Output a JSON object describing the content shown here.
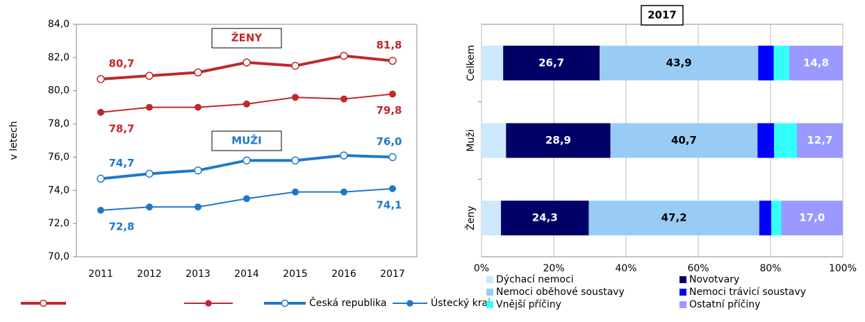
{
  "chart_data": [
    {
      "type": "line",
      "y_label": "v letech",
      "categories": [
        "2011",
        "2012",
        "2013",
        "2014",
        "2015",
        "2016",
        "2017"
      ],
      "ylim": [
        70,
        84
      ],
      "yticks": [
        {
          "value": 70,
          "label": "70,0"
        },
        {
          "value": 72,
          "label": "72,0"
        },
        {
          "value": 74,
          "label": "74,0"
        },
        {
          "value": 76,
          "label": "76,0"
        },
        {
          "value": 78,
          "label": "78,0"
        },
        {
          "value": 80,
          "label": "80,0"
        },
        {
          "value": 82,
          "label": "82,0"
        },
        {
          "value": 84,
          "label": "84,0"
        }
      ],
      "annotations": [
        "ŽENY",
        "MUŽI"
      ],
      "series": [
        {
          "color": "#c0282c",
          "values": [
            80.7,
            80.9,
            81.1,
            81.7,
            81.5,
            82.1,
            81.8
          ],
          "value_labels": [
            "80,7",
            null,
            null,
            null,
            null,
            null,
            "81,8"
          ]
        },
        {
          "color": "#c0282c",
          "values": [
            78.7,
            79.0,
            79.0,
            79.2,
            79.6,
            79.5,
            79.8
          ],
          "value_labels": [
            "78,7",
            null,
            null,
            null,
            null,
            null,
            "79,8"
          ]
        },
        {
          "name": "Česká republika",
          "color": "#1f78c8",
          "values": [
            74.7,
            75.0,
            75.2,
            75.8,
            75.8,
            76.1,
            76.0
          ],
          "value_labels": [
            "74,7",
            null,
            null,
            null,
            null,
            null,
            "76,0"
          ]
        },
        {
          "name": "Ústecký kraj",
          "color": "#1f78c8",
          "values": [
            72.8,
            73.0,
            73.0,
            73.5,
            73.9,
            73.9,
            74.1
          ],
          "value_labels": [
            "72,8",
            null,
            null,
            null,
            null,
            null,
            "74,1"
          ]
        }
      ]
    },
    {
      "type": "stacked_barh",
      "title": "2017",
      "categories": [
        "Celkem",
        "Muži",
        "Ženy"
      ],
      "xlim": [
        0,
        100
      ],
      "xticks": [
        {
          "value": 0,
          "label": "0%"
        },
        {
          "value": 20,
          "label": "20%"
        },
        {
          "value": 40,
          "label": "40%"
        },
        {
          "value": 60,
          "label": "60%"
        },
        {
          "value": 80,
          "label": "80%"
        },
        {
          "value": 100,
          "label": "100%"
        }
      ],
      "grid": true,
      "series": [
        {
          "name": "Dýchací nemoci",
          "color": "#cce8fa",
          "values": [
            6.0,
            6.8,
            5.4
          ]
        },
        {
          "name": "Novotvary",
          "color": "#000066",
          "values": [
            26.7,
            28.9,
            24.3
          ],
          "value_labels": [
            "26,7",
            "28,9",
            "24,3"
          ]
        },
        {
          "name": "Nemoci oběhové soustavy",
          "color": "#99ccf5",
          "values": [
            43.9,
            40.7,
            47.2
          ],
          "value_labels": [
            "43,9",
            "40,7",
            "47,2"
          ]
        },
        {
          "name": "Nemoci trávicí soustavy",
          "color": "#0000ff",
          "values": [
            4.3,
            4.6,
            3.3
          ]
        },
        {
          "name": "Vnější příčiny",
          "color": "#33ffff",
          "values": [
            4.3,
            6.3,
            2.8
          ]
        },
        {
          "name": "Ostatní příčiny",
          "color": "#9999ff",
          "values": [
            14.8,
            12.7,
            17.0
          ],
          "value_labels": [
            "14,8",
            "12,7",
            "17,0"
          ]
        }
      ]
    }
  ]
}
